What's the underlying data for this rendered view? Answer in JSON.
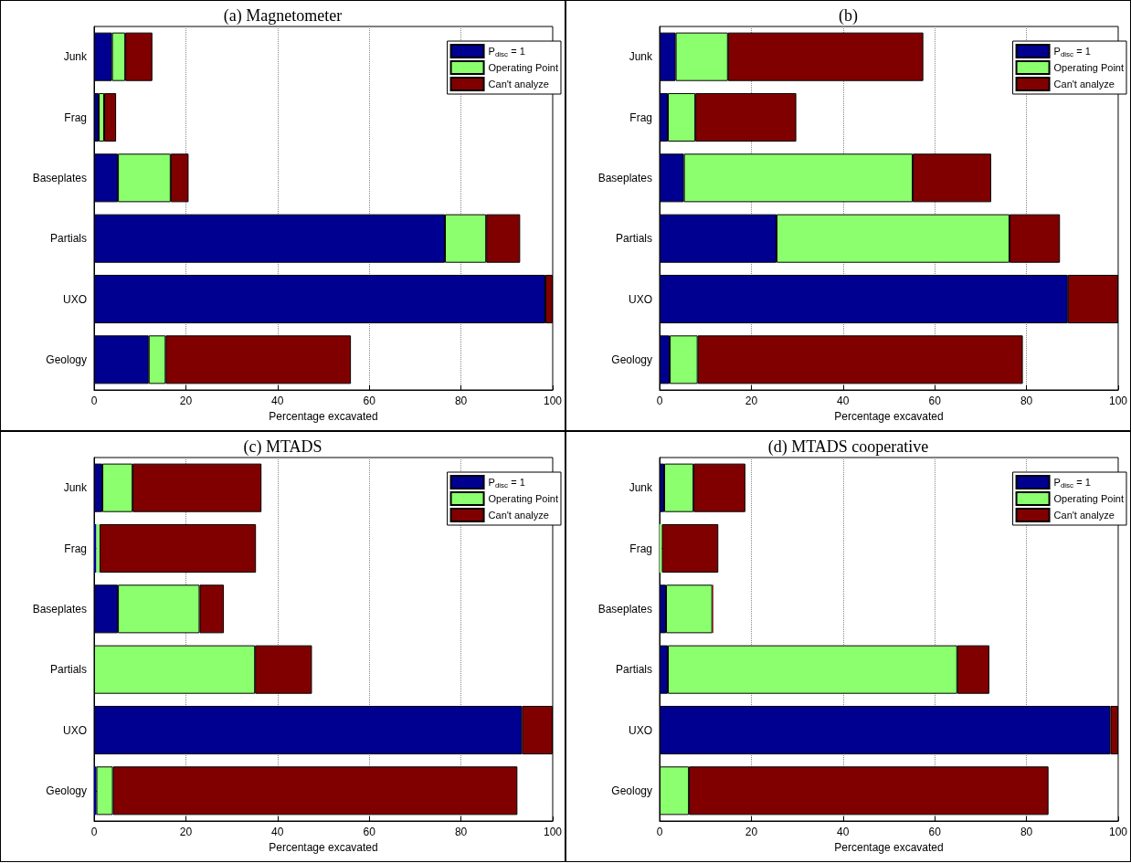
{
  "chart_data": [
    {
      "type": "bar",
      "orientation": "horizontal",
      "stacked": true,
      "title": "(a) Magnetometer",
      "xlabel": "Percentage excavated",
      "categories": [
        "Junk",
        "Frag",
        "Baseplates",
        "Partials",
        "UXO",
        "Geology"
      ],
      "xlim": [
        0,
        100
      ],
      "xticks": [
        0,
        20,
        40,
        60,
        80,
        100
      ],
      "grid": "x",
      "legend": "top right",
      "series": [
        {
          "name": "P$_{disc}$ = 1",
          "color": "#000090",
          "values": [
            3.9,
            1.0,
            5.2,
            76.5,
            98.4,
            11.9
          ]
        },
        {
          "name": "Operating Point",
          "color": "#8cff6e",
          "values": [
            2.9,
            1.2,
            11.5,
            9.0,
            0,
            3.7
          ]
        },
        {
          "name": "Can't analyze",
          "color": "#800000",
          "values": [
            5.9,
            2.6,
            3.9,
            7.4,
            1.6,
            40.4
          ]
        }
      ]
    },
    {
      "type": "bar",
      "orientation": "horizontal",
      "stacked": true,
      "title": "(b)",
      "xlabel": "Percentage excavated",
      "categories": [
        "Junk",
        "Frag",
        "Baseplates",
        "Partials",
        "UXO",
        "Geology"
      ],
      "xlim": [
        0,
        100
      ],
      "xticks": [
        0,
        20,
        40,
        60,
        80,
        100
      ],
      "grid": "x",
      "legend": "top right",
      "series": [
        {
          "name": "P$_{disc}$ = 1",
          "color": "#000090",
          "values": [
            3.5,
            1.8,
            5.3,
            25.5,
            89.0,
            2.2
          ]
        },
        {
          "name": "Operating Point",
          "color": "#8cff6e",
          "values": [
            11.4,
            6.0,
            49.9,
            50.8,
            0,
            6.1
          ]
        },
        {
          "name": "Can't analyze",
          "color": "#800000",
          "values": [
            42.6,
            22.0,
            17.1,
            11.0,
            11.0,
            70.9
          ]
        }
      ]
    },
    {
      "type": "bar",
      "orientation": "horizontal",
      "stacked": true,
      "title": "(c) MTADS",
      "xlabel": "Percentage excavated",
      "categories": [
        "Junk",
        "Frag",
        "Baseplates",
        "Partials",
        "UXO",
        "Geology"
      ],
      "xlim": [
        0,
        100
      ],
      "xticks": [
        0,
        20,
        40,
        60,
        80,
        100
      ],
      "grid": "x",
      "legend": "top right",
      "series": [
        {
          "name": "P$_{disc}$ = 1",
          "color": "#000090",
          "values": [
            1.8,
            0.5,
            5.2,
            0,
            93.3,
            0.5
          ]
        },
        {
          "name": "Operating Point",
          "color": "#8cff6e",
          "values": [
            6.6,
            0.7,
            17.8,
            35.1,
            0,
            3.6
          ]
        },
        {
          "name": "Can't analyze",
          "color": "#800000",
          "values": [
            28.1,
            34.1,
            5.3,
            12.4,
            6.7,
            88.2
          ]
        }
      ]
    },
    {
      "type": "bar",
      "orientation": "horizontal",
      "stacked": true,
      "title": "(d) MTADS cooperative",
      "xlabel": "Percentage excavated",
      "categories": [
        "Junk",
        "Frag",
        "Baseplates",
        "Partials",
        "UXO",
        "Geology"
      ],
      "xlim": [
        0,
        100
      ],
      "xticks": [
        0,
        20,
        40,
        60,
        80,
        100
      ],
      "grid": "x",
      "legend": "top right",
      "series": [
        {
          "name": "P$_{disc}$ = 1",
          "color": "#000090",
          "values": [
            1.0,
            0,
            1.4,
            1.8,
            98.3,
            0
          ]
        },
        {
          "name": "Operating Point",
          "color": "#8cff6e",
          "values": [
            6.4,
            0.5,
            10.1,
            63.1,
            0,
            6.4
          ]
        },
        {
          "name": "Can't analyze",
          "color": "#800000",
          "values": [
            11.3,
            12.3,
            0.2,
            7.0,
            1.7,
            78.4
          ]
        }
      ]
    }
  ]
}
